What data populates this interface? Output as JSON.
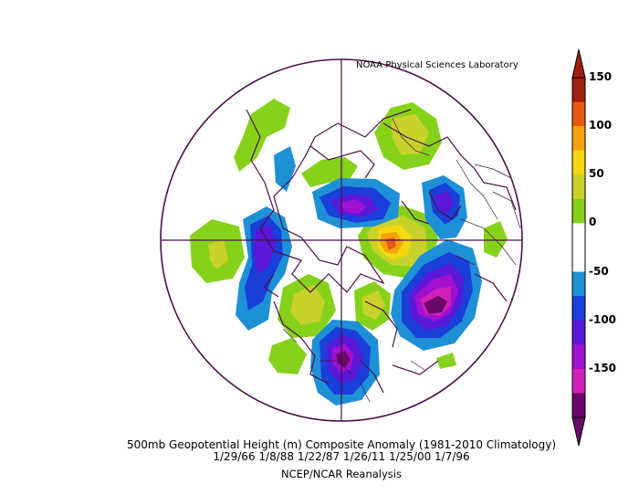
{
  "header": {
    "credit": "NOAA Physical Sciences Laboratory"
  },
  "caption": {
    "line1": "500mb Geopotential Height (m) Composite Anomaly (1981-2010 Climatology)",
    "line2": "1/29/66 1/8/88 1/22/87 1/26/11 1/25/00 1/7/96",
    "line3": "NCEP/NCAR Reanalysis"
  },
  "colorbar": {
    "ticks": [
      "150",
      "100",
      "50",
      "0",
      "-50",
      "-100",
      "-150"
    ],
    "segments": [
      "#a01f10",
      "#e85a12",
      "#f4a20c",
      "#f2d80c",
      "#c8d22a",
      "#86d21a",
      "#ffffff",
      "#ffffff",
      "#1e90d6",
      "#1a3ed8",
      "#5a18d8",
      "#a010d0",
      "#d020b8",
      "#6a086a"
    ]
  },
  "map": {
    "projection": "polar stereographic (north pole)",
    "outline_color": "#4a1048",
    "anomaly_centers": [
      {
        "name": "north-atlantic-low",
        "sign": "negative",
        "peak": "-150"
      },
      {
        "name": "north-america-low",
        "sign": "negative",
        "peak": "-150"
      },
      {
        "name": "asia-low",
        "sign": "negative",
        "peak": "-100"
      },
      {
        "name": "pacific-trough",
        "sign": "negative",
        "peak": "-100"
      },
      {
        "name": "siberia-high",
        "sign": "positive",
        "peak": "150"
      },
      {
        "name": "europe-ridge",
        "sign": "positive",
        "peak": "50"
      }
    ]
  }
}
